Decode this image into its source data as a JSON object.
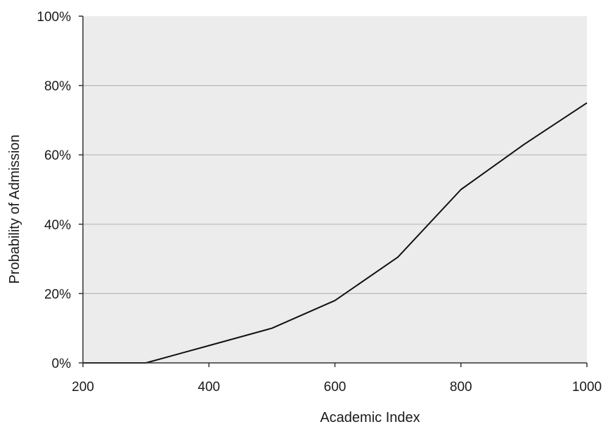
{
  "chart_data": {
    "type": "line",
    "title": "",
    "xlabel": "Academic Index",
    "ylabel": "Probability of Admission",
    "xlim": [
      200,
      1000
    ],
    "ylim": [
      0,
      100
    ],
    "x_ticks": [
      200,
      400,
      600,
      800,
      1000
    ],
    "x_tick_labels": [
      "200",
      "400",
      "600",
      "800",
      "1000"
    ],
    "y_ticks": [
      0,
      20,
      40,
      60,
      80,
      100
    ],
    "y_tick_labels": [
      "0%",
      "20%",
      "40%",
      "60%",
      "80%",
      "100%"
    ],
    "grid": "horizontal",
    "legend": "none",
    "colors": {
      "plot_background": "#ececec",
      "line": "#111111",
      "grid": "#b8b8b8"
    },
    "series": [
      {
        "x": [
          200,
          300,
          400,
          500,
          600,
          700,
          800,
          900,
          1000
        ],
        "y": [
          0,
          0,
          5,
          10,
          18,
          30.5,
          50,
          63,
          75
        ]
      }
    ]
  }
}
